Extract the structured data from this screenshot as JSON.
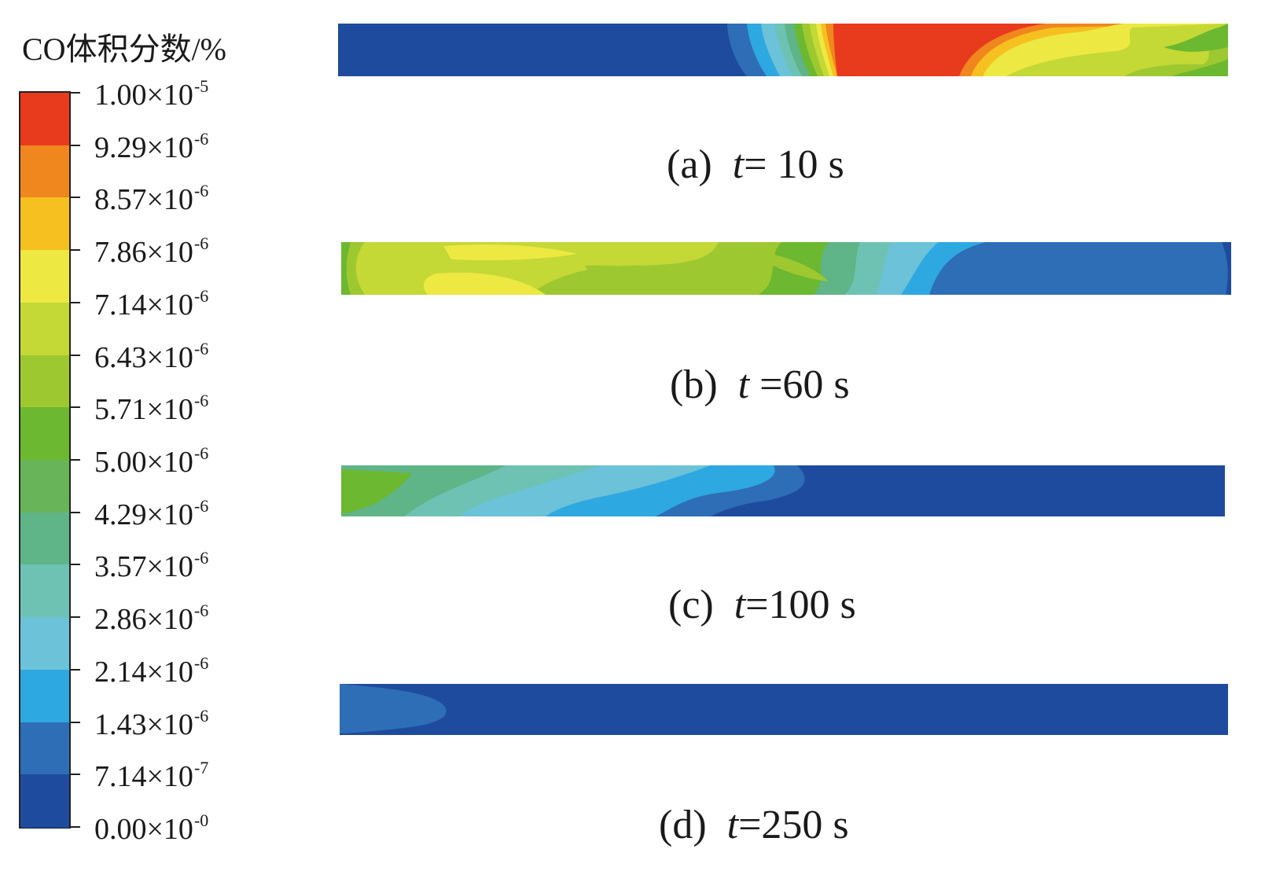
{
  "legend": {
    "title": "CO体积分数/%",
    "ticks": [
      {
        "label": "1.00×10",
        "exp": "-5"
      },
      {
        "label": "9.29×10",
        "exp": "-6"
      },
      {
        "label": "8.57×10",
        "exp": "-6"
      },
      {
        "label": "7.86×10",
        "exp": "-6"
      },
      {
        "label": "7.14×10",
        "exp": "-6"
      },
      {
        "label": "6.43×10",
        "exp": "-6"
      },
      {
        "label": "5.71×10",
        "exp": "-6"
      },
      {
        "label": "5.00×10",
        "exp": "-6"
      },
      {
        "label": "4.29×10",
        "exp": "-6"
      },
      {
        "label": "3.57×10",
        "exp": "-6"
      },
      {
        "label": "2.86×10",
        "exp": "-6"
      },
      {
        "label": "2.14×10",
        "exp": "-6"
      },
      {
        "label": "1.43×10",
        "exp": "-6"
      },
      {
        "label": "7.14×10",
        "exp": "-7"
      },
      {
        "label": "0.00×10",
        "exp": "-0"
      }
    ],
    "band_colors": [
      "#e83a1c",
      "#f0861e",
      "#f5c020",
      "#ede842",
      "#c4d836",
      "#9ec830",
      "#6cb830",
      "#68b458",
      "#5fb488",
      "#6ec2b4",
      "#6cc2d8",
      "#2ea8e0",
      "#2e6eb6",
      "#1e4b9e"
    ]
  },
  "panels": [
    {
      "id": "a",
      "letter": "(a)",
      "tvar": "t",
      "rest": "= 10 s"
    },
    {
      "id": "b",
      "letter": "(b)",
      "tvar": "t",
      "rest": " =60 s"
    },
    {
      "id": "c",
      "letter": "(c)",
      "tvar": "t",
      "rest": "=100 s"
    },
    {
      "id": "d",
      "letter": "(d)",
      "tvar": "t",
      "rest": "=250 s"
    }
  ]
}
